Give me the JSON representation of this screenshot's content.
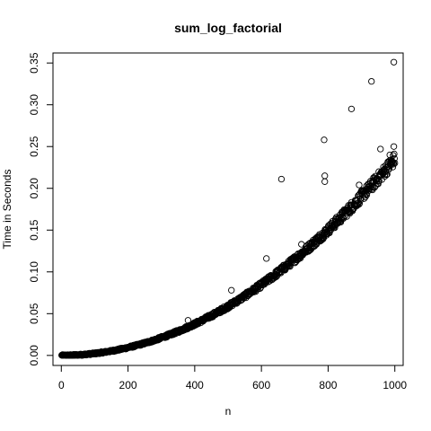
{
  "chart_data": {
    "type": "scatter",
    "title": "sum_log_factorial",
    "xlabel": "n",
    "ylabel": "Time in Seconds",
    "xlim": [
      -25,
      1025
    ],
    "ylim": [
      -0.012,
      0.362
    ],
    "x_ticks": [
      0,
      200,
      400,
      600,
      800,
      1000
    ],
    "x_tick_labels": [
      "0",
      "200",
      "400",
      "600",
      "800",
      "1000"
    ],
    "y_ticks": [
      0.0,
      0.05,
      0.1,
      0.15,
      0.2,
      0.25,
      0.3,
      0.35
    ],
    "y_tick_labels": [
      "0.00",
      "0.05",
      "0.10",
      "0.15",
      "0.20",
      "0.25",
      "0.30",
      "0.35"
    ],
    "grid": false,
    "legend": "none",
    "marker": "open-circle",
    "marker_color": "#000000",
    "trend": {
      "description": "y ≈ 0.235 * (n/1000)^2, dense cluster for n = 1..1000",
      "coefficient": 0.235,
      "exponent": 2,
      "n_min": 1,
      "n_max": 1000,
      "step": 1
    },
    "outliers": [
      {
        "x": 660,
        "y": 0.211
      },
      {
        "x": 788,
        "y": 0.258
      },
      {
        "x": 790,
        "y": 0.215
      },
      {
        "x": 790,
        "y": 0.208
      },
      {
        "x": 870,
        "y": 0.295
      },
      {
        "x": 930,
        "y": 0.328
      },
      {
        "x": 997,
        "y": 0.351
      },
      {
        "x": 997,
        "y": 0.25
      },
      {
        "x": 615,
        "y": 0.116
      },
      {
        "x": 510,
        "y": 0.078
      },
      {
        "x": 380,
        "y": 0.042
      },
      {
        "x": 720,
        "y": 0.133
      },
      {
        "x": 957,
        "y": 0.247
      },
      {
        "x": 893,
        "y": 0.204
      },
      {
        "x": 985,
        "y": 0.24
      }
    ]
  }
}
